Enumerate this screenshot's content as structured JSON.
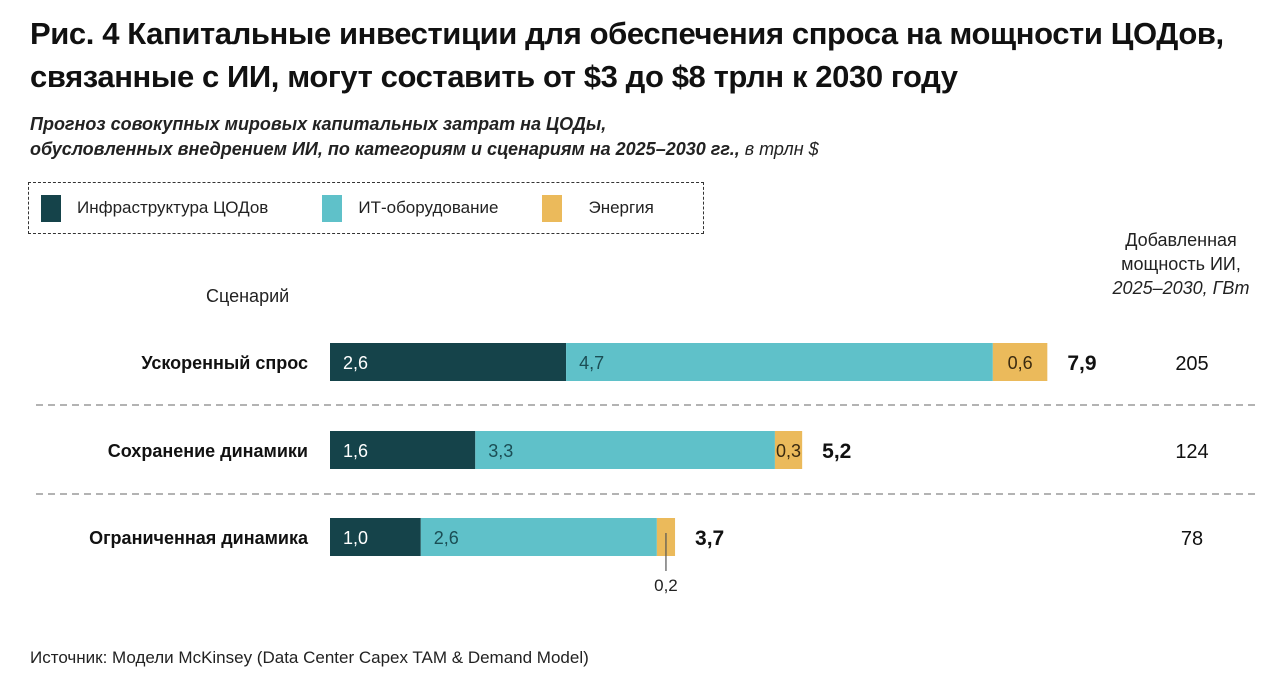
{
  "title": "Рис. 4 Капитальные инвестиции для обеспечения спроса на мощности ЦОДов, связанные с ИИ, могут составить от $3 до $8 трлн к 2030 году",
  "subtitle": {
    "line1": "Прогноз совокупных мировых капитальных затрат на ЦОДы,",
    "line2": "обусловленных внедрением ИИ, по категориям и сценариям на 2025–2030 гг.,",
    "unit": " в трлн $"
  },
  "scenario_header": "Сценарий",
  "capacity_header": {
    "line1": "Добавленная",
    "line2": "мощность ИИ,",
    "line3": "2025–2030, ГВт"
  },
  "source": "Источник: Модели McKinsey (Data Center Capex TAM & Demand Model)",
  "chart_data": {
    "type": "bar",
    "orientation": "horizontal",
    "stacked": true,
    "title": "Рис. 4 Капитальные инвестиции для обеспечения спроса на мощности ЦОДов, связанные с ИИ, могут составить от $3 до $8 трлн к 2030 году",
    "subtitle": "Прогноз совокупных мировых капитальных затрат на ЦОДы, обусловленных внедрением ИИ, по категориям и сценариям на 2025–2030 гг., в трлн $",
    "xlabel": "",
    "ylabel": "Сценарий",
    "xlim": [
      0,
      7.9
    ],
    "grid": false,
    "legend_position": "top-left",
    "categories": [
      "Ускоренный спрос",
      "Сохранение динамики",
      "Ограниченная динамика"
    ],
    "series": [
      {
        "name": "Инфраструктура ЦОДов",
        "color": "#15434a",
        "label_color": "#ffffff",
        "values": [
          2.6,
          1.6,
          1.0
        ],
        "labels": [
          "2,6",
          "1,6",
          "1,0"
        ]
      },
      {
        "name": "ИТ-оборудование",
        "color": "#5fc1c9",
        "label_color": "#1b4e55",
        "values": [
          4.7,
          3.3,
          2.6
        ],
        "labels": [
          "4,7",
          "3,3",
          "2,6"
        ]
      },
      {
        "name": "Энергия",
        "color": "#ebba5b",
        "label_color": "#3a2a10",
        "values": [
          0.6,
          0.3,
          0.2
        ],
        "labels": [
          "0,6",
          "0,3",
          "0,2"
        ]
      }
    ],
    "totals": [
      7.9,
      5.2,
      3.7
    ],
    "total_labels": [
      "7,9",
      "5,2",
      "3,7"
    ],
    "added_capacity_gw": [
      205,
      124,
      78
    ],
    "added_capacity_labels": [
      "205",
      "124",
      "78"
    ],
    "annotations": [
      {
        "category": "Ограниченная динамика",
        "series": "Энергия",
        "text": "0,2",
        "placement": "below-with-leader"
      }
    ]
  }
}
